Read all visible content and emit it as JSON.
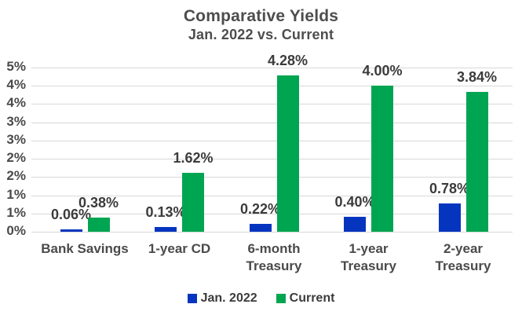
{
  "chart_data": {
    "type": "bar",
    "title": "Comparative Yields",
    "subtitle": "Jan. 2022 vs. Current",
    "categories": [
      "Bank Savings",
      "1-year CD",
      "6-month\nTreasury",
      "1-year\nTreasury",
      "2-year\nTreasury"
    ],
    "series": [
      {
        "name": "Jan. 2022",
        "color": "#0535bf",
        "values": [
          0.06,
          0.13,
          0.22,
          0.4,
          0.78
        ],
        "value_labels": [
          "0.06%",
          "0.13%",
          "0.22%",
          "0.40%",
          "0.78%"
        ]
      },
      {
        "name": "Current",
        "color": "#00a551",
        "values": [
          0.38,
          1.62,
          4.28,
          4.0,
          3.84
        ],
        "value_labels": [
          "0.38%",
          "1.62%",
          "4.28%",
          "4.00%",
          "3.84%"
        ]
      }
    ],
    "y_axis": {
      "min": 0,
      "max": 4.5,
      "tick_step": 0.5,
      "tick_labels": [
        "0%",
        "1%",
        "1%",
        "2%",
        "2%",
        "3%",
        "3%",
        "4%",
        "4%",
        "5%"
      ]
    },
    "grid": true,
    "legend_position": "bottom",
    "colors": {
      "gridline": "#d8d8d8",
      "title_text": "#4d4d4d",
      "axis_text": "#4a4a4a",
      "label_text": "#3b3b3b"
    }
  }
}
